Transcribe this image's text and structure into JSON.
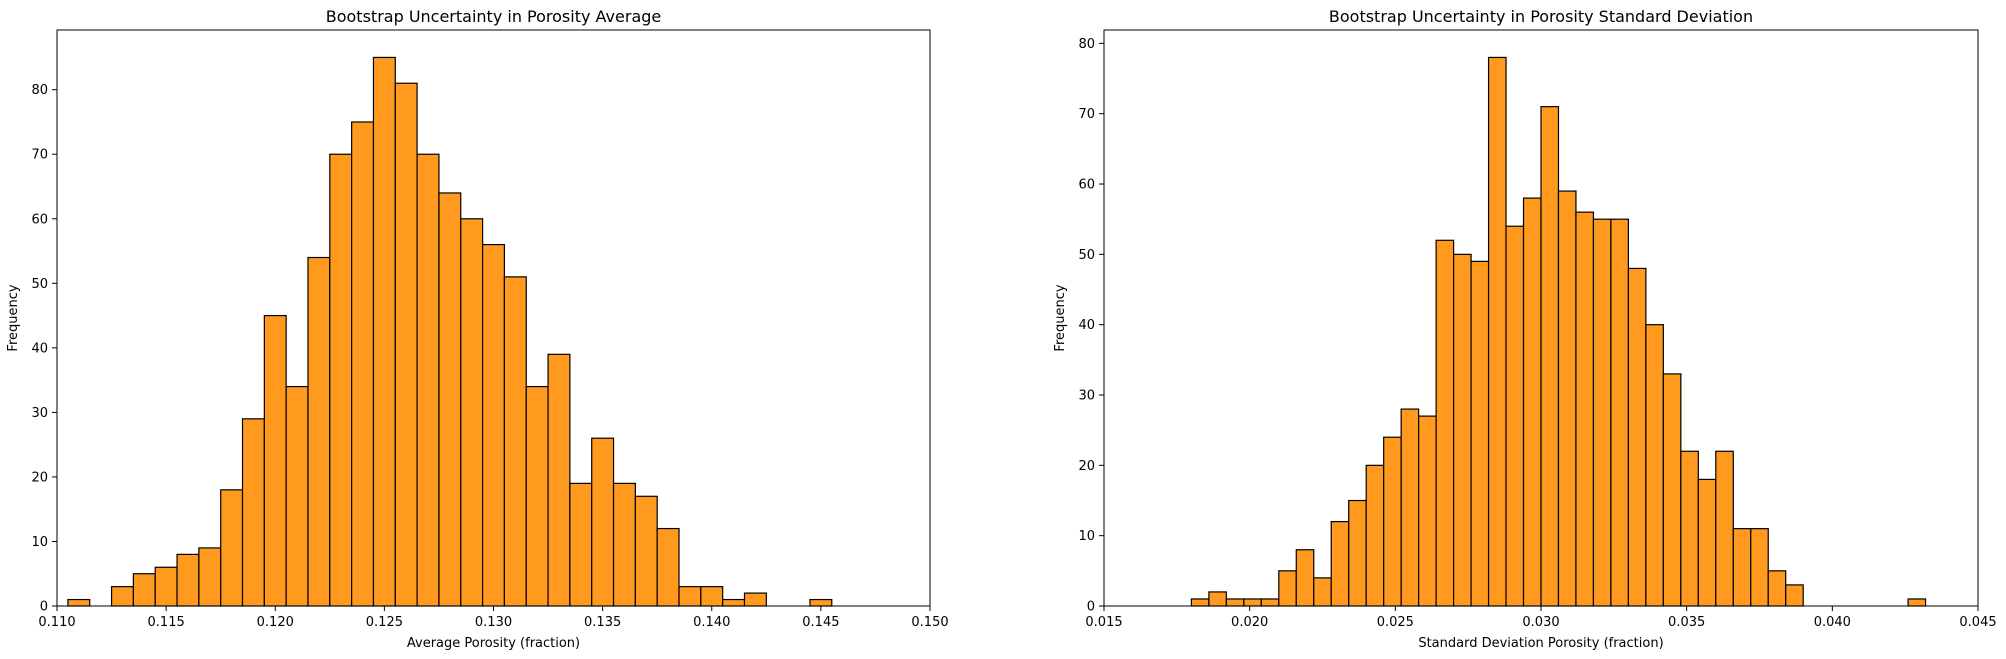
{
  "chart_data": [
    {
      "type": "bar",
      "title": "Bootstrap Uncertainty in Porosity Average",
      "xlabel": "Average Porosity (fraction)",
      "ylabel": "Frequency",
      "xlim": [
        0.11,
        0.15
      ],
      "ylim": [
        0,
        89.25
      ],
      "xticks": [
        "0.110",
        "0.115",
        "0.120",
        "0.125",
        "0.130",
        "0.135",
        "0.140",
        "0.145",
        "0.150"
      ],
      "yticks": [
        "0",
        "10",
        "20",
        "30",
        "40",
        "50",
        "60",
        "70",
        "80"
      ],
      "bin_start": 0.1105,
      "bin_width": 0.001,
      "values": [
        1,
        0,
        3,
        5,
        6,
        8,
        9,
        18,
        29,
        45,
        34,
        54,
        70,
        75,
        85,
        81,
        70,
        64,
        60,
        56,
        51,
        34,
        39,
        19,
        26,
        19,
        17,
        12,
        3,
        3,
        1,
        2,
        0,
        0,
        1
      ],
      "bar_color": "#ff9a1f",
      "edge_color": "#000000",
      "grid": false
    },
    {
      "type": "bar",
      "title": "Bootstrap Uncertainty in Porosity Standard Deviation",
      "xlabel": "Standard Deviation Porosity (fraction)",
      "ylabel": "Frequency",
      "xlim": [
        0.015,
        0.045
      ],
      "ylim": [
        0,
        81.9
      ],
      "xticks": [
        "0.015",
        "0.020",
        "0.025",
        "0.030",
        "0.035",
        "0.040",
        "0.045"
      ],
      "yticks": [
        "0",
        "10",
        "20",
        "30",
        "40",
        "50",
        "60",
        "70",
        "80"
      ],
      "bin_start": 0.018,
      "bin_width": 0.0006,
      "values": [
        1,
        2,
        1,
        1,
        1,
        5,
        8,
        4,
        12,
        15,
        20,
        24,
        28,
        27,
        52,
        50,
        49,
        78,
        54,
        58,
        71,
        59,
        56,
        55,
        55,
        48,
        40,
        33,
        22,
        18,
        22,
        11,
        11,
        5,
        3,
        0,
        0,
        0,
        0,
        0,
        0,
        1
      ],
      "bar_color": "#ff9a1f",
      "edge_color": "#000000",
      "grid": false
    }
  ]
}
